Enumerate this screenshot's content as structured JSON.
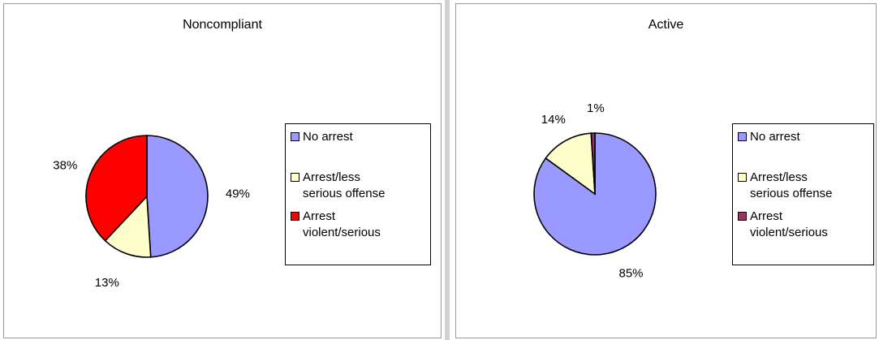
{
  "chart_data": [
    {
      "type": "pie",
      "title": "Noncompliant",
      "categories": [
        "No arrest",
        "Arrest/less serious offense",
        "Arrest violent/serious"
      ],
      "values": [
        49,
        13,
        38
      ],
      "labels": [
        "49%",
        "13%",
        "38%"
      ],
      "colors": [
        "#9999ff",
        "#ffffcc",
        "#ff0000"
      ],
      "legend": {
        "placement": "right",
        "entries": [
          "No arrest",
          "Arrest/less\nserious offense",
          "Arrest\nviolent/serious"
        ]
      }
    },
    {
      "type": "pie",
      "title": "Active",
      "categories": [
        "No arrest",
        "Arrest/less serious offense",
        "Arrest violent/serious"
      ],
      "values": [
        85,
        14,
        1
      ],
      "labels": [
        "85%",
        "14%",
        "1%"
      ],
      "colors": [
        "#9999ff",
        "#ffffcc",
        "#993366"
      ],
      "legend": {
        "placement": "right",
        "entries": [
          "No arrest",
          "Arrest/less\nserious offense",
          "Arrest\nviolent/serious"
        ]
      }
    }
  ]
}
